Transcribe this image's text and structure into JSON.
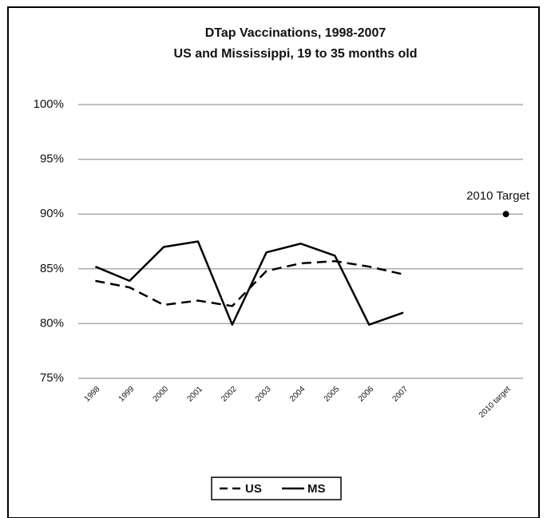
{
  "chart_data": {
    "type": "line",
    "title": "DTap Vaccinations, 1998-2007",
    "subtitle": "US and Mississippi, 19 to 35 months old",
    "categories": [
      "1998",
      "1999",
      "2000",
      "2001",
      "2002",
      "2003",
      "2004",
      "2005",
      "2006",
      "2007",
      null,
      null,
      "2010 target"
    ],
    "series": [
      {
        "name": "US",
        "color": "#000000",
        "dash": true,
        "values": [
          83.9,
          83.3,
          81.7,
          82.1,
          81.6,
          84.8,
          85.5,
          85.7,
          85.2,
          84.5,
          null,
          null,
          null
        ]
      },
      {
        "name": "MS",
        "color": "#000000",
        "dash": false,
        "values": [
          85.2,
          83.9,
          87.0,
          87.5,
          79.9,
          86.5,
          87.3,
          86.2,
          79.9,
          81.0,
          null,
          null,
          null
        ]
      }
    ],
    "annotations": [
      {
        "text": "2010 Target",
        "value": 90
      }
    ],
    "ylim": [
      75,
      100
    ],
    "yticks": [
      {
        "value": 75,
        "label": "75%"
      },
      {
        "value": 80,
        "label": "80%"
      },
      {
        "value": 85,
        "label": "85%"
      },
      {
        "value": 90,
        "label": "90%"
      },
      {
        "value": 95,
        "label": "95%"
      },
      {
        "value": 100,
        "label": "100%"
      }
    ],
    "grid": true,
    "legend": "bottom"
  }
}
